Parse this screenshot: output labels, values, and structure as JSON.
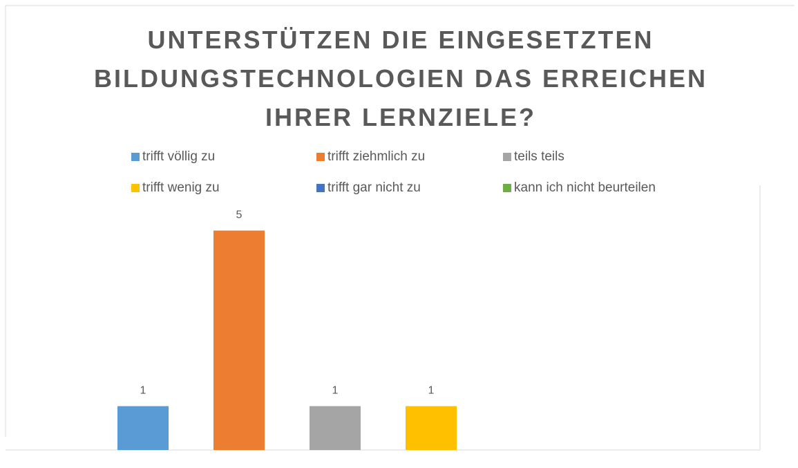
{
  "chart_data": {
    "type": "bar",
    "title": "UNTERSTÜTZEN DIE EINGESETZTEN BILDUNGSTECHNOLOGIEN DAS ERREICHEN IHRER LERNZIELE?",
    "series": [
      {
        "name": "trifft völlig zu",
        "color": "#5b9bd5",
        "values": [
          1
        ]
      },
      {
        "name": "trifft ziehmlich zu",
        "color": "#ed7d31",
        "values": [
          5
        ]
      },
      {
        "name": "teils teils",
        "color": "#a5a5a5",
        "values": [
          1
        ]
      },
      {
        "name": "trifft wenig zu",
        "color": "#ffc000",
        "values": [
          1
        ]
      },
      {
        "name": "trifft gar nicht zu",
        "color": "#4472c4",
        "values": [
          null
        ]
      },
      {
        "name": "kann ich nicht beurteilen",
        "color": "#70ad47",
        "values": [
          null
        ]
      }
    ],
    "ylim": [
      0,
      6
    ],
    "legend": "top"
  }
}
